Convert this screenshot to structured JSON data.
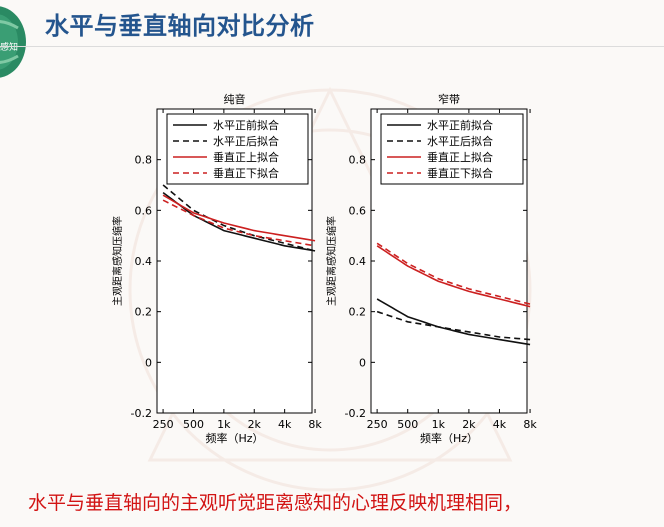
{
  "slide": {
    "title": "水平与垂直轴向对比分析",
    "logo_text": "感知",
    "conclusion": "水平与垂直轴向的主观听觉距离感知的心理反映机理相同，"
  },
  "colors": {
    "title": "#24558e",
    "series_black": "#111111",
    "series_red": "#cc2020",
    "conclusion": "#d21414"
  },
  "chart_data": [
    {
      "type": "line",
      "title": "纯音",
      "xlabel": "频率（Hz）",
      "ylabel": "主观距离感知压缩率",
      "x": [
        250,
        500,
        1000,
        2000,
        4000,
        8000
      ],
      "xticklabels": [
        "250",
        "500",
        "1k",
        "2k",
        "4k",
        "8k"
      ],
      "yticks": [
        -0.2,
        0,
        0.2,
        0.4,
        0.6,
        0.8
      ],
      "yticklabels": [
        "-0.2",
        "0",
        "0.2",
        "0.4",
        "0.6",
        "0.8"
      ],
      "ylim": [
        -0.2,
        1.0
      ],
      "xlim_log2": [
        0.8,
        5.9
      ],
      "legend_position": "top-right",
      "series": [
        {
          "name": "水平正前拟合",
          "color": "#111111",
          "style": "solid",
          "values": [
            0.67,
            0.58,
            0.52,
            0.49,
            0.46,
            0.44
          ]
        },
        {
          "name": "水平正后拟合",
          "color": "#111111",
          "style": "dashed",
          "values": [
            0.7,
            0.6,
            0.54,
            0.5,
            0.47,
            0.44
          ]
        },
        {
          "name": "垂直正上拟合",
          "color": "#cc2020",
          "style": "solid",
          "values": [
            0.66,
            0.59,
            0.55,
            0.52,
            0.5,
            0.48
          ]
        },
        {
          "name": "垂直正下拟合",
          "color": "#cc2020",
          "style": "dashed",
          "values": [
            0.64,
            0.58,
            0.53,
            0.5,
            0.48,
            0.46
          ]
        }
      ]
    },
    {
      "type": "line",
      "title": "窄带",
      "xlabel": "频率（Hz）",
      "ylabel": "主观距离感知压缩率",
      "x": [
        250,
        500,
        1000,
        2000,
        4000,
        8000
      ],
      "xticklabels": [
        "250",
        "500",
        "1k",
        "2k",
        "4k",
        "8k"
      ],
      "yticks": [
        -0.2,
        0,
        0.2,
        0.4,
        0.6,
        0.8
      ],
      "yticklabels": [
        "-0.2",
        "0",
        "0.2",
        "0.4",
        "0.6",
        "0.8"
      ],
      "ylim": [
        -0.2,
        1.0
      ],
      "xlim_log2": [
        0.8,
        5.9
      ],
      "legend_position": "top-right",
      "series": [
        {
          "name": "水平正前拟合",
          "color": "#111111",
          "style": "solid",
          "values": [
            0.25,
            0.18,
            0.14,
            0.11,
            0.09,
            0.07
          ]
        },
        {
          "name": "水平正后拟合",
          "color": "#111111",
          "style": "dashed",
          "values": [
            0.2,
            0.16,
            0.14,
            0.12,
            0.1,
            0.09
          ]
        },
        {
          "name": "垂直正上拟合",
          "color": "#cc2020",
          "style": "solid",
          "values": [
            0.46,
            0.38,
            0.32,
            0.28,
            0.25,
            0.22
          ]
        },
        {
          "name": "垂直正下拟合",
          "color": "#cc2020",
          "style": "dashed",
          "values": [
            0.47,
            0.39,
            0.33,
            0.29,
            0.26,
            0.23
          ]
        }
      ]
    }
  ]
}
